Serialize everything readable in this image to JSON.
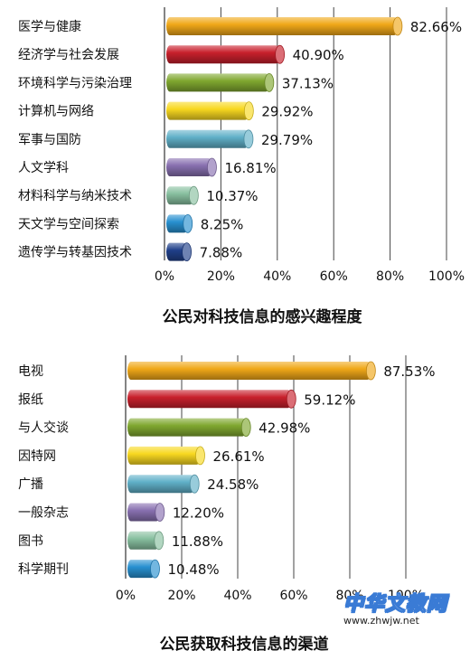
{
  "chart_data": [
    {
      "type": "bar",
      "orientation": "horizontal",
      "title": "公民对科技信息的感兴趣程度",
      "categories": [
        "医学与健康",
        "经济学与社会发展",
        "环境科学与污染治理",
        "计算机与网络",
        "军事与国防",
        "人文学科",
        "材料科学与纳米技术",
        "天文学与空间探索",
        "遗传学与转基因技术"
      ],
      "values": [
        82.66,
        40.9,
        37.13,
        29.92,
        29.79,
        16.81,
        10.37,
        8.25,
        7.88
      ],
      "value_labels": [
        "82.66%",
        "40.90%",
        "37.13%",
        "29.92%",
        "29.79%",
        "16.81%",
        "10.37%",
        "8.25%",
        "7.88%"
      ],
      "bar_colors": [
        "#f0a818",
        "#c8202c",
        "#80a830",
        "#f8d820",
        "#60b0c8",
        "#8870b0",
        "#88c0a0",
        "#2890d0",
        "#20408a"
      ],
      "xlim": [
        0,
        100
      ],
      "xticks": [
        "0%",
        "20%",
        "40%",
        "60%",
        "80%",
        "100%"
      ],
      "grid": true
    },
    {
      "type": "bar",
      "orientation": "horizontal",
      "title": "公民获取科技信息的渠道",
      "categories": [
        "电视",
        "报纸",
        "与人交谈",
        "因特网",
        "广播",
        "一般杂志",
        "图书",
        "科学期刊"
      ],
      "values": [
        87.53,
        59.12,
        42.98,
        26.61,
        24.58,
        12.2,
        11.88,
        10.48
      ],
      "value_labels": [
        "87.53%",
        "59.12%",
        "42.98%",
        "26.61%",
        "24.58%",
        "12.20%",
        "11.88%",
        "10.48%"
      ],
      "bar_colors": [
        "#f0a818",
        "#c8202c",
        "#80a830",
        "#f8d820",
        "#60b0c8",
        "#8870b0",
        "#88c0a0",
        "#2890d0"
      ],
      "xlim": [
        0,
        100
      ],
      "xticks": [
        "0%",
        "20%",
        "40%",
        "60%",
        "80%",
        "100%"
      ],
      "grid": true
    }
  ],
  "watermark": {
    "logo": "中华文教网",
    "url": "www.zhwjw.net"
  }
}
